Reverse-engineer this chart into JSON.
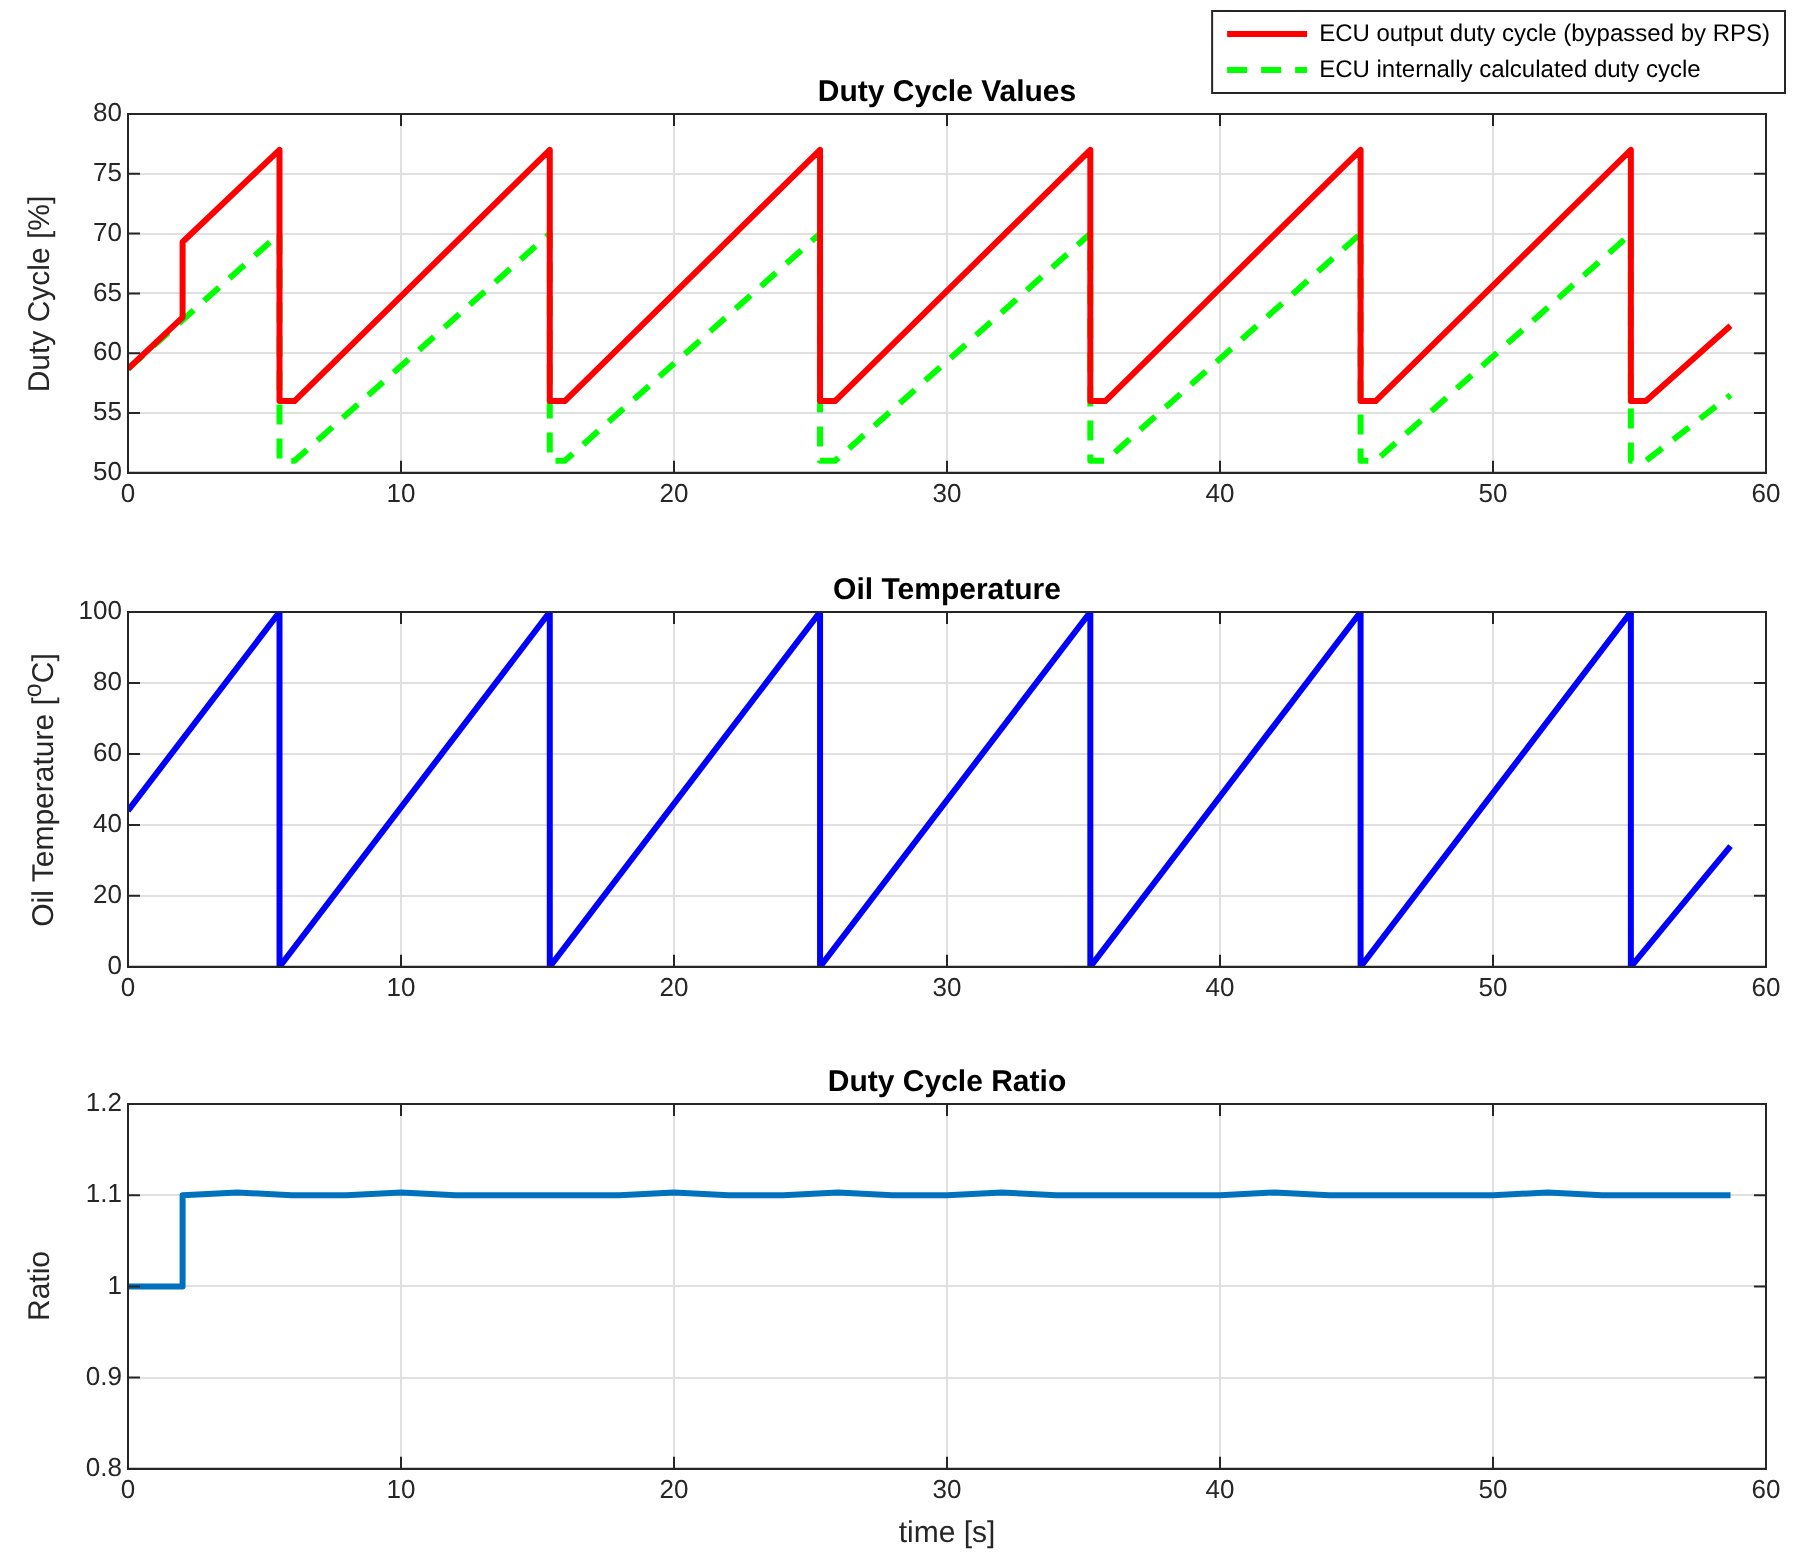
{
  "chart_data": [
    {
      "type": "line",
      "title": "Duty Cycle Values",
      "ylabel": "Duty Cycle [%]",
      "xlim": [
        0,
        60
      ],
      "xticks": [
        0,
        10,
        20,
        30,
        40,
        50,
        60
      ],
      "ylim": [
        50,
        80
      ],
      "yticks": [
        50,
        55,
        60,
        65,
        70,
        75,
        80
      ],
      "grid": true,
      "legend": "top right",
      "marker": "none",
      "series": [
        {
          "name": "ECU output duty cycle (bypassed by RPS)",
          "color": "#ff0000",
          "line_style": "solid",
          "x": [
            0,
            2,
            2,
            5.55,
            5.55,
            6.1,
            15.45,
            15.45,
            16.0,
            25.35,
            25.35,
            25.9,
            35.25,
            35.25,
            35.8,
            45.15,
            45.15,
            45.7,
            55.05,
            55.05,
            55.6,
            58.7
          ],
          "values": [
            58.7,
            63,
            69.3,
            77,
            56,
            56,
            77,
            56,
            56,
            77,
            56,
            56,
            77,
            56,
            56,
            77,
            56,
            56,
            77,
            56,
            56,
            62.3
          ]
        },
        {
          "name": "ECU internally calculated duty cycle",
          "color": "#00ff00",
          "line_style": "dashed",
          "x": [
            0,
            5.55,
            5.55,
            6.1,
            15.45,
            15.45,
            16.0,
            25.35,
            25.35,
            25.9,
            35.25,
            35.25,
            35.8,
            45.15,
            45.15,
            45.7,
            55.05,
            55.05,
            55.6,
            58.7
          ],
          "values": [
            58.7,
            70,
            51,
            51,
            70,
            51,
            51,
            70,
            51,
            51,
            70,
            51,
            51,
            70,
            51,
            51,
            70,
            51,
            51,
            56.5
          ]
        }
      ]
    },
    {
      "type": "line",
      "title": "Oil Temperature",
      "ylabel": "Oil Temperature [$^{o}$C]",
      "xlim": [
        0,
        60
      ],
      "xticks": [
        0,
        10,
        20,
        30,
        40,
        50,
        60
      ],
      "ylim": [
        0,
        100
      ],
      "yticks": [
        0,
        20,
        40,
        60,
        80,
        100
      ],
      "grid": true,
      "marker": "none",
      "series": [
        {
          "color": "#0000ff",
          "x": [
            0,
            5.55,
            5.55,
            15.45,
            15.45,
            25.35,
            25.35,
            35.25,
            35.25,
            45.15,
            45.15,
            55.05,
            55.05,
            58.7
          ],
          "values": [
            44,
            100,
            0,
            100,
            0,
            100,
            0,
            100,
            0,
            100,
            0,
            100,
            0,
            34
          ]
        }
      ]
    },
    {
      "type": "line",
      "title": "Duty Cycle Ratio",
      "xlabel": "time [s]",
      "ylabel": "Ratio",
      "xlim": [
        0,
        60
      ],
      "xticks": [
        0,
        10,
        20,
        30,
        40,
        50,
        60
      ],
      "ylim": [
        0.8,
        1.2
      ],
      "yticks": [
        0.8,
        0.9,
        1,
        1.1,
        1.2
      ],
      "grid": true,
      "marker": "none",
      "series": [
        {
          "color": "#0072bd",
          "x": [
            0,
            2,
            2,
            4,
            6,
            8,
            10,
            12,
            14,
            16,
            18,
            20,
            22,
            24,
            26,
            28,
            30,
            32,
            34,
            36,
            38,
            40,
            42,
            44,
            46,
            48,
            50,
            52,
            54,
            56,
            58.7
          ],
          "values": [
            1,
            1,
            1.1,
            1.103,
            1.1,
            1.1,
            1.103,
            1.1,
            1.1,
            1.1,
            1.1,
            1.103,
            1.1,
            1.1,
            1.103,
            1.1,
            1.1,
            1.103,
            1.1,
            1.1,
            1.1,
            1.1,
            1.103,
            1.1,
            1.1,
            1.1,
            1.1,
            1.103,
            1.1,
            1.1,
            1.1
          ]
        }
      ]
    }
  ]
}
